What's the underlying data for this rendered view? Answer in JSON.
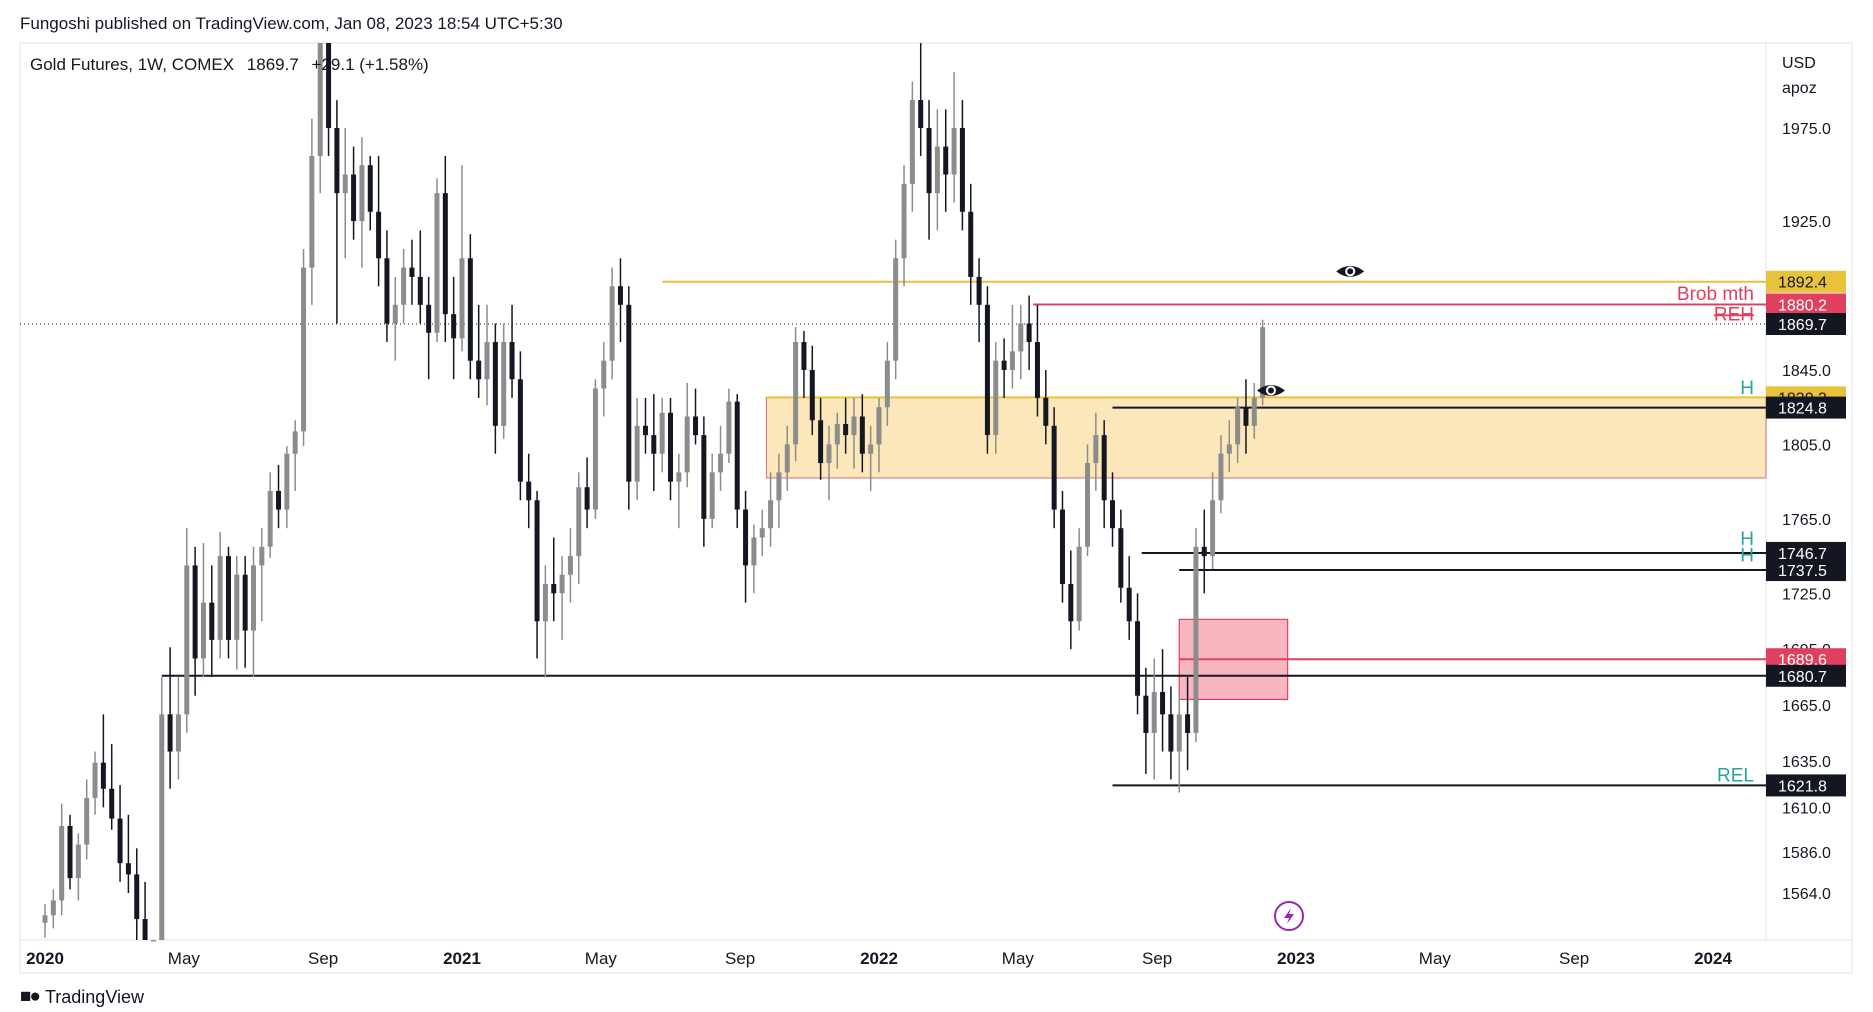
{
  "header": {
    "publisher_line": "Fungoshi published on TradingView.com, Jan 08, 2023 18:54 UTC+5:30"
  },
  "legend": {
    "symbol": "Gold Futures, 1W, COMEX",
    "last": "1869.7",
    "change": "+29.1 (+1.58%)"
  },
  "footer": {
    "brand": "TradingView"
  },
  "chart_data": {
    "type": "candlestick",
    "currency": "USD",
    "scale_label": "apoz",
    "y_ticks": [
      1975.0,
      1925.0,
      1845.0,
      1805.0,
      1765.0,
      1725.0,
      1695.0,
      1665.0,
      1635.0,
      1610.0,
      1586.0,
      1564.0
    ],
    "x_ticks": [
      {
        "label": "2020",
        "pos": 0.0,
        "bold": true
      },
      {
        "label": "May",
        "pos": 0.333
      },
      {
        "label": "Sep",
        "pos": 0.667
      },
      {
        "label": "2021",
        "pos": 1.0,
        "bold": true
      },
      {
        "label": "May",
        "pos": 1.333
      },
      {
        "label": "Sep",
        "pos": 1.667
      },
      {
        "label": "2022",
        "pos": 2.0,
        "bold": true
      },
      {
        "label": "May",
        "pos": 2.333
      },
      {
        "label": "Sep",
        "pos": 2.667
      },
      {
        "label": "2023",
        "pos": 3.0,
        "bold": true
      },
      {
        "label": "May",
        "pos": 3.333
      },
      {
        "label": "Sep",
        "pos": 3.667
      },
      {
        "label": "2024",
        "pos": 4.0,
        "bold": true
      }
    ],
    "levels": [
      {
        "price": 1892.4,
        "label": "1892.4",
        "color": "#e8c23a",
        "text_color": "#131722",
        "from": 1.48,
        "to_axis": true
      },
      {
        "price": 1880.2,
        "label": "1880.2",
        "color": "#e0405e",
        "text_color": "#ffffff",
        "from": 2.37,
        "to_axis": true
      },
      {
        "price": 1869.7,
        "label": "1869.7",
        "color": "#131722",
        "text_color": "#ffffff",
        "from": 0.0,
        "to_axis": true,
        "dotted": true
      },
      {
        "price": 1830.3,
        "label": "1830.3",
        "color": "#e8c23a",
        "text_color": "#131722",
        "from": 1.73,
        "to_axis": true
      },
      {
        "price": 1824.8,
        "label": "1824.8",
        "color": "#131722",
        "text_color": "#ffffff",
        "from": 2.56,
        "to_axis": true
      },
      {
        "price": 1746.7,
        "label": "1746.7",
        "color": "#131722",
        "text_color": "#ffffff",
        "from": 2.63,
        "to_axis": true
      },
      {
        "price": 1737.5,
        "label": "1737.5",
        "color": "#131722",
        "text_color": "#ffffff",
        "from": 2.72,
        "to_axis": true
      },
      {
        "price": 1689.6,
        "label": "1689.6",
        "color": "#e0405e",
        "text_color": "#ffffff",
        "from": 2.72,
        "to_axis": true
      },
      {
        "price": 1680.7,
        "label": "1680.7",
        "color": "#131722",
        "text_color": "#ffffff",
        "from": 0.28,
        "to_axis": true
      },
      {
        "price": 1621.8,
        "label": "1621.8",
        "color": "#131722",
        "text_color": "#ffffff",
        "from": 2.56,
        "to_axis": true
      }
    ],
    "annotations": [
      {
        "text": "Brob mth",
        "price": 1882.5,
        "color": "#e0405e"
      },
      {
        "text": "REH",
        "price": 1871.5,
        "color": "#e0405e",
        "strike": true
      },
      {
        "text": "H",
        "price": 1832.0,
        "color": "#26a69a"
      },
      {
        "text": "H",
        "price": 1751.0,
        "color": "#26a69a"
      },
      {
        "text": "H",
        "price": 1742.0,
        "color": "#26a69a"
      },
      {
        "text": "REL",
        "price": 1624.0,
        "color": "#26a69a"
      }
    ],
    "zones": [
      {
        "from": 1.73,
        "to": 4.21,
        "top": 1830.3,
        "bottom": 1787.0,
        "fill": "#fbe7b9",
        "border": "#d3838a"
      },
      {
        "from": 2.72,
        "to": 2.98,
        "top": 1711.0,
        "bottom": 1668.0,
        "fill": "#f7b6c0",
        "border": "#e0405e"
      }
    ],
    "eye_icons": [
      {
        "pos": 3.13,
        "price": 1898.0
      },
      {
        "pos": 2.94,
        "price": 1834.0
      }
    ],
    "candles": [
      [
        0.0,
        1548,
        1558,
        1540,
        1552
      ],
      [
        0.02,
        1552,
        1566,
        1545,
        1560
      ],
      [
        0.04,
        1560,
        1612,
        1552,
        1600
      ],
      [
        0.06,
        1600,
        1606,
        1566,
        1572
      ],
      [
        0.08,
        1572,
        1596,
        1560,
        1590
      ],
      [
        0.1,
        1590,
        1625,
        1582,
        1615
      ],
      [
        0.12,
        1615,
        1640,
        1606,
        1634
      ],
      [
        0.14,
        1634,
        1660,
        1610,
        1620
      ],
      [
        0.16,
        1620,
        1644,
        1598,
        1604
      ],
      [
        0.18,
        1604,
        1622,
        1570,
        1580
      ],
      [
        0.2,
        1580,
        1606,
        1564,
        1574
      ],
      [
        0.22,
        1574,
        1588,
        1536,
        1550
      ],
      [
        0.24,
        1550,
        1570,
        1470,
        1480
      ],
      [
        0.26,
        1480,
        1500,
        1460,
        1490
      ],
      [
        0.28,
        1490,
        1680,
        1484,
        1660
      ],
      [
        0.3,
        1660,
        1696,
        1620,
        1640
      ],
      [
        0.32,
        1640,
        1680,
        1625,
        1660
      ],
      [
        0.34,
        1660,
        1760,
        1650,
        1740
      ],
      [
        0.36,
        1740,
        1750,
        1670,
        1690
      ],
      [
        0.38,
        1690,
        1752,
        1680,
        1720
      ],
      [
        0.4,
        1720,
        1740,
        1680,
        1700
      ],
      [
        0.42,
        1700,
        1758,
        1690,
        1745
      ],
      [
        0.44,
        1745,
        1750,
        1690,
        1700
      ],
      [
        0.46,
        1700,
        1745,
        1684,
        1735
      ],
      [
        0.48,
        1735,
        1745,
        1685,
        1705
      ],
      [
        0.5,
        1705,
        1750,
        1680,
        1740
      ],
      [
        0.52,
        1740,
        1760,
        1710,
        1750
      ],
      [
        0.54,
        1750,
        1790,
        1744,
        1780
      ],
      [
        0.56,
        1780,
        1794,
        1760,
        1770
      ],
      [
        0.58,
        1770,
        1804,
        1760,
        1800
      ],
      [
        0.6,
        1800,
        1818,
        1780,
        1812
      ],
      [
        0.62,
        1812,
        1910,
        1804,
        1900
      ],
      [
        0.64,
        1900,
        1980,
        1880,
        1960
      ],
      [
        0.66,
        1960,
        2075,
        1940,
        2035
      ],
      [
        0.68,
        2035,
        2080,
        1960,
        1975
      ],
      [
        0.7,
        1975,
        1990,
        1870,
        1940
      ],
      [
        0.72,
        1940,
        1975,
        1905,
        1950
      ],
      [
        0.74,
        1950,
        1965,
        1915,
        1925
      ],
      [
        0.76,
        1925,
        1970,
        1900,
        1955
      ],
      [
        0.78,
        1955,
        1960,
        1920,
        1930
      ],
      [
        0.8,
        1930,
        1960,
        1890,
        1905
      ],
      [
        0.82,
        1905,
        1920,
        1860,
        1870
      ],
      [
        0.84,
        1870,
        1895,
        1850,
        1880
      ],
      [
        0.86,
        1880,
        1910,
        1870,
        1900
      ],
      [
        0.88,
        1900,
        1915,
        1880,
        1895
      ],
      [
        0.9,
        1895,
        1920,
        1870,
        1880
      ],
      [
        0.92,
        1880,
        1895,
        1840,
        1865
      ],
      [
        0.94,
        1865,
        1948,
        1860,
        1940
      ],
      [
        0.96,
        1940,
        1960,
        1860,
        1875
      ],
      [
        0.98,
        1875,
        1895,
        1840,
        1862
      ],
      [
        1.0,
        1862,
        1955,
        1855,
        1905
      ],
      [
        1.02,
        1905,
        1918,
        1840,
        1850
      ],
      [
        1.04,
        1850,
        1880,
        1830,
        1840
      ],
      [
        1.06,
        1840,
        1880,
        1826,
        1860
      ],
      [
        1.08,
        1860,
        1870,
        1800,
        1815
      ],
      [
        1.1,
        1815,
        1870,
        1808,
        1860
      ],
      [
        1.12,
        1860,
        1880,
        1830,
        1840
      ],
      [
        1.14,
        1840,
        1855,
        1775,
        1785
      ],
      [
        1.16,
        1785,
        1800,
        1760,
        1775
      ],
      [
        1.18,
        1775,
        1780,
        1690,
        1710
      ],
      [
        1.2,
        1710,
        1740,
        1680,
        1730
      ],
      [
        1.22,
        1730,
        1755,
        1710,
        1725
      ],
      [
        1.24,
        1725,
        1745,
        1700,
        1735
      ],
      [
        1.26,
        1735,
        1760,
        1720,
        1745
      ],
      [
        1.28,
        1745,
        1790,
        1730,
        1782
      ],
      [
        1.3,
        1782,
        1798,
        1760,
        1770
      ],
      [
        1.32,
        1770,
        1840,
        1765,
        1835
      ],
      [
        1.34,
        1835,
        1860,
        1820,
        1850
      ],
      [
        1.36,
        1850,
        1900,
        1840,
        1890
      ],
      [
        1.38,
        1890,
        1905,
        1860,
        1880
      ],
      [
        1.4,
        1880,
        1890,
        1770,
        1785
      ],
      [
        1.42,
        1785,
        1830,
        1775,
        1815
      ],
      [
        1.44,
        1815,
        1830,
        1800,
        1810
      ],
      [
        1.46,
        1810,
        1832,
        1780,
        1800
      ],
      [
        1.48,
        1800,
        1830,
        1790,
        1822
      ],
      [
        1.5,
        1822,
        1830,
        1775,
        1785
      ],
      [
        1.52,
        1785,
        1800,
        1760,
        1790
      ],
      [
        1.54,
        1790,
        1838,
        1782,
        1820
      ],
      [
        1.56,
        1820,
        1835,
        1805,
        1810
      ],
      [
        1.58,
        1810,
        1820,
        1750,
        1765
      ],
      [
        1.6,
        1765,
        1800,
        1760,
        1790
      ],
      [
        1.62,
        1790,
        1815,
        1780,
        1800
      ],
      [
        1.64,
        1800,
        1835,
        1795,
        1828
      ],
      [
        1.66,
        1828,
        1832,
        1760,
        1770
      ],
      [
        1.68,
        1770,
        1780,
        1720,
        1740
      ],
      [
        1.7,
        1740,
        1762,
        1725,
        1755
      ],
      [
        1.72,
        1755,
        1770,
        1745,
        1760
      ],
      [
        1.74,
        1760,
        1790,
        1750,
        1775
      ],
      [
        1.76,
        1775,
        1800,
        1760,
        1790
      ],
      [
        1.78,
        1790,
        1815,
        1780,
        1805
      ],
      [
        1.8,
        1805,
        1868,
        1796,
        1860
      ],
      [
        1.82,
        1860,
        1866,
        1830,
        1845
      ],
      [
        1.84,
        1845,
        1858,
        1810,
        1818
      ],
      [
        1.86,
        1818,
        1830,
        1786,
        1795
      ],
      [
        1.88,
        1795,
        1815,
        1775,
        1805
      ],
      [
        1.9,
        1805,
        1822,
        1792,
        1816
      ],
      [
        1.92,
        1816,
        1830,
        1800,
        1810
      ],
      [
        1.94,
        1810,
        1830,
        1792,
        1820
      ],
      [
        1.96,
        1820,
        1832,
        1790,
        1800
      ],
      [
        1.98,
        1800,
        1815,
        1780,
        1805
      ],
      [
        2.0,
        1805,
        1830,
        1790,
        1825
      ],
      [
        2.02,
        1825,
        1860,
        1815,
        1850
      ],
      [
        2.04,
        1850,
        1915,
        1840,
        1905
      ],
      [
        2.06,
        1905,
        1955,
        1890,
        1945
      ],
      [
        2.08,
        1945,
        2000,
        1930,
        1990
      ],
      [
        2.1,
        1990,
        2080,
        1960,
        1975
      ],
      [
        2.12,
        1975,
        1990,
        1915,
        1940
      ],
      [
        2.14,
        1940,
        1985,
        1920,
        1965
      ],
      [
        2.16,
        1965,
        1985,
        1930,
        1950
      ],
      [
        2.18,
        1950,
        2005,
        1935,
        1975
      ],
      [
        2.2,
        1975,
        1990,
        1920,
        1930
      ],
      [
        2.22,
        1930,
        1945,
        1880,
        1895
      ],
      [
        2.24,
        1895,
        1905,
        1860,
        1880
      ],
      [
        2.26,
        1880,
        1890,
        1800,
        1810
      ],
      [
        2.28,
        1810,
        1860,
        1800,
        1850
      ],
      [
        2.3,
        1850,
        1862,
        1830,
        1845
      ],
      [
        2.32,
        1845,
        1880,
        1835,
        1855
      ],
      [
        2.34,
        1855,
        1880,
        1840,
        1870
      ],
      [
        2.36,
        1870,
        1885,
        1845,
        1860
      ],
      [
        2.38,
        1860,
        1880,
        1820,
        1830
      ],
      [
        2.4,
        1830,
        1845,
        1805,
        1815
      ],
      [
        2.42,
        1815,
        1825,
        1760,
        1770
      ],
      [
        2.44,
        1770,
        1780,
        1720,
        1730
      ],
      [
        2.46,
        1730,
        1748,
        1695,
        1710
      ],
      [
        2.48,
        1710,
        1760,
        1705,
        1750
      ],
      [
        2.5,
        1750,
        1805,
        1745,
        1795
      ],
      [
        2.52,
        1795,
        1822,
        1780,
        1810
      ],
      [
        2.54,
        1810,
        1818,
        1760,
        1775
      ],
      [
        2.56,
        1775,
        1790,
        1750,
        1760
      ],
      [
        2.58,
        1760,
        1770,
        1720,
        1728
      ],
      [
        2.6,
        1728,
        1745,
        1700,
        1710
      ],
      [
        2.62,
        1710,
        1725,
        1660,
        1670
      ],
      [
        2.64,
        1670,
        1685,
        1628,
        1650
      ],
      [
        2.66,
        1650,
        1690,
        1625,
        1672
      ],
      [
        2.68,
        1672,
        1695,
        1640,
        1660
      ],
      [
        2.7,
        1660,
        1675,
        1625,
        1640
      ],
      [
        2.72,
        1640,
        1672,
        1618,
        1660
      ],
      [
        2.74,
        1660,
        1680,
        1630,
        1650
      ],
      [
        2.76,
        1650,
        1760,
        1645,
        1750
      ],
      [
        2.78,
        1750,
        1770,
        1725,
        1745
      ],
      [
        2.8,
        1745,
        1790,
        1738,
        1775
      ],
      [
        2.82,
        1775,
        1810,
        1768,
        1800
      ],
      [
        2.84,
        1800,
        1818,
        1790,
        1805
      ],
      [
        2.86,
        1805,
        1830,
        1795,
        1825
      ],
      [
        2.88,
        1825,
        1840,
        1800,
        1815
      ],
      [
        2.9,
        1815,
        1838,
        1808,
        1830
      ],
      [
        2.92,
        1830,
        1872,
        1826,
        1868
      ]
    ]
  }
}
